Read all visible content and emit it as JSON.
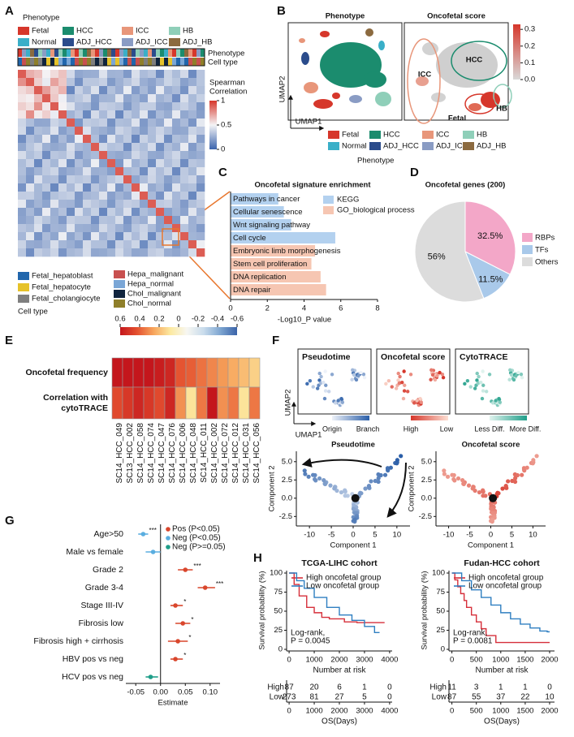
{
  "panel_labels": [
    "A",
    "B",
    "C",
    "D",
    "E",
    "F",
    "G",
    "H"
  ],
  "phenotype_legend": {
    "title": "Phenotype",
    "items": [
      {
        "name": "Fetal",
        "color": "#d6372b"
      },
      {
        "name": "HCC",
        "color": "#1b8c6e"
      },
      {
        "name": "ICC",
        "color": "#e8967a"
      },
      {
        "name": "HB",
        "color": "#8fcfb9"
      },
      {
        "name": "Normal",
        "color": "#3aafc8"
      },
      {
        "name": "ADJ_HCC",
        "color": "#2b4c8c"
      },
      {
        "name": "ADJ_ICC",
        "color": "#8a9cc4"
      },
      {
        "name": "ADJ_HB",
        "color": "#8b6a3f"
      }
    ]
  },
  "panel_a": {
    "annotation_rows": [
      "Phenotype",
      "Cell type"
    ],
    "colorbar": {
      "title_lines": [
        "Spearman",
        "Correlation"
      ],
      "lim": [
        0,
        1
      ],
      "ticks": [
        1,
        0.5,
        0
      ],
      "colors": [
        "#3b64ad",
        "#f4f4f6",
        "#d6372b"
      ]
    },
    "cell_type_legend": {
      "title": "Cell type",
      "items": [
        {
          "name": "Fetal_hepatoblast",
          "color": "#2166ac"
        },
        {
          "name": "Fetal_hepatocyte",
          "color": "#e6c229"
        },
        {
          "name": "Fetal_cholangiocyte",
          "color": "#7f7f7f"
        },
        {
          "name": "Hepa_malignant",
          "color": "#c8504f"
        },
        {
          "name": "Hepa_normal",
          "color": "#7aa6d6"
        },
        {
          "name": "Chol_malignant",
          "color": "#10243e"
        },
        {
          "name": "Chol_normal",
          "color": "#8f7f2a"
        }
      ]
    }
  },
  "panel_b": {
    "titles": [
      "Phenotype",
      "Oncofetal score"
    ],
    "axis_labels": [
      "UMAP2",
      "UMAP1"
    ],
    "region_labels": [
      "ICC",
      "HCC",
      "HB",
      "Fetal"
    ],
    "colorbar": {
      "lim": [
        0,
        0.33
      ],
      "ticks": [
        0.3,
        0.2,
        0.1,
        {
          "value": 0,
          "label": "0.0"
        }
      ],
      "colors": [
        "#d9d9d9",
        "#d6372b"
      ]
    },
    "legend_title": "Phenotype"
  },
  "panel_f": {
    "titles": [
      "Pseudotime",
      "Oncofetal score",
      "CytoTRACE"
    ],
    "axis_labels": [
      "UMAP2",
      "UMAP1"
    ],
    "scale_labels": [
      [
        "Origin",
        "Branch"
      ],
      [
        "High",
        "Low"
      ],
      [
        "Less Diff.",
        "More Diff."
      ]
    ],
    "scale_colors": [
      [
        "#eef2f9",
        "#2a5ea8"
      ],
      [
        "#d6372b",
        "#fde0d4"
      ],
      [
        "#e0f3ee",
        "#1f9e89"
      ]
    ],
    "trajectory": {
      "titles": [
        "Pseudotime",
        "Oncofetal score"
      ],
      "xlabel": "Component 1",
      "ylabel": "Component 2",
      "branch_label": "1",
      "xlim": [
        -13,
        13
      ],
      "xticks": [
        -10,
        -5,
        0,
        5,
        10
      ],
      "ylim": [
        -3.8,
        6.2
      ],
      "yticks": [
        -2.5,
        {
          "value": 0,
          "label": "0.0"
        },
        2.5,
        {
          "value": 5,
          "label": "5.0"
        }
      ]
    }
  },
  "chart_data": [
    {
      "type": "barh",
      "title": "Oncofetal signature enrichment",
      "categories": [
        "Pathways in cancer",
        "Cellular senescence",
        "Wnt signaling pathway",
        "Cell cycle",
        "Embryonic limb morphogenesis",
        "Stem cell proliferation",
        "DNA replication",
        "DNA repair"
      ],
      "series": [
        {
          "name": "KEGG",
          "color": "#b3d1ef",
          "text_color": "#1f4e8c",
          "values": [
            2.6,
            2.9,
            3.3,
            5.7,
            null,
            null,
            null,
            null
          ]
        },
        {
          "name": "GO_biological process",
          "color": "#f6c6b2",
          "text_color": "#8a3a1c",
          "values": [
            null,
            null,
            null,
            null,
            4.6,
            4.4,
            4.9,
            5.2
          ]
        }
      ],
      "xlim": [
        0,
        8
      ],
      "xticks": [
        0,
        2,
        4,
        6,
        8
      ],
      "xlabel": "-Log10_P value"
    },
    {
      "type": "pie",
      "title": "Oncofetal genes (200)",
      "categories": [
        "RBPs",
        "TFs",
        "Others"
      ],
      "values": [
        32.5,
        11.5,
        56
      ],
      "value_labels": [
        "32.5%",
        "11.5%",
        "56%"
      ],
      "colors": [
        "#f3a7c8",
        "#a9c9ea",
        "#dcdcdc"
      ]
    },
    {
      "type": "forest",
      "categories": [
        "Age>50",
        "Male vs female",
        "Grade 2",
        "Grade 3-4",
        "Stage III-IV",
        "Fibrosis low",
        "Fibrosis high + cirrhosis",
        "HBV pos vs neg",
        "HCV pos vs neg"
      ],
      "series": [
        {
          "name": "Pos (P<0.05)",
          "color": "#d9462c",
          "values": [
            null,
            null,
            0.05,
            0.09,
            0.03,
            0.045,
            0.035,
            0.03,
            null
          ],
          "lower": [
            null,
            null,
            0.035,
            0.075,
            0.02,
            0.03,
            0.015,
            0.02,
            null
          ],
          "upper": [
            null,
            null,
            0.065,
            0.11,
            0.045,
            0.06,
            0.055,
            0.045,
            null
          ]
        },
        {
          "name": "Neg (P<0.05)",
          "color": "#5aaee0",
          "values": [
            -0.035,
            -0.015,
            null,
            null,
            null,
            null,
            null,
            null,
            null
          ],
          "lower": [
            -0.045,
            -0.03,
            null,
            null,
            null,
            null,
            null,
            null,
            null
          ],
          "upper": [
            -0.025,
            0.0,
            null,
            null,
            null,
            null,
            null,
            null,
            null
          ]
        },
        {
          "name": "Neg (P>=0.05)",
          "color": "#1f9e89",
          "values": [
            null,
            null,
            null,
            null,
            null,
            null,
            null,
            null,
            -0.02
          ],
          "lower": [
            null,
            null,
            null,
            null,
            null,
            null,
            null,
            null,
            -0.03
          ],
          "upper": [
            null,
            null,
            null,
            null,
            null,
            null,
            null,
            null,
            -0.005
          ]
        }
      ],
      "annotations": [
        "***",
        null,
        "***",
        "***",
        "*",
        "*",
        "*",
        "*",
        null
      ],
      "xlim": [
        -0.07,
        0.12
      ],
      "xticks": [
        -0.05,
        {
          "value": 0,
          "label": "0.00"
        },
        0.05,
        {
          "value": 0.1,
          "label": "0.10"
        }
      ],
      "xlabel": "Estimate"
    },
    {
      "type": "km",
      "title": "TCGA-LIHC cohort",
      "series": [
        {
          "name": "High oncofetal group",
          "color": "#d62f3a",
          "x": [
            0,
            200,
            200,
            400,
            400,
            700,
            700,
            1000,
            1000,
            1300,
            1300,
            1600,
            1600,
            2200,
            2200,
            2700,
            2700,
            3800
          ],
          "values": [
            100,
            100,
            85,
            85,
            70,
            70,
            55,
            55,
            48,
            48,
            42,
            42,
            40,
            40,
            36,
            36,
            35,
            35
          ]
        },
        {
          "name": "Low oncofetal group",
          "color": "#2f7fc1",
          "x": [
            0,
            300,
            300,
            600,
            600,
            1000,
            1000,
            1500,
            1500,
            2000,
            2000,
            2500,
            2500,
            3000,
            3000,
            3400,
            3400,
            3600
          ],
          "values": [
            100,
            100,
            90,
            90,
            80,
            80,
            68,
            68,
            55,
            55,
            45,
            45,
            38,
            38,
            30,
            30,
            22,
            22
          ]
        }
      ],
      "xlim": [
        -100,
        4100
      ],
      "xticks": [
        0,
        1000,
        2000,
        3000,
        4000
      ],
      "ylim": [
        0,
        100
      ],
      "yticks": [
        0,
        25,
        50,
        75,
        100
      ],
      "ylabel": "Survival probability (%)",
      "xlabel": "Number at risk",
      "annotation_lines": [
        "Log-rank,",
        "P = 0.0045"
      ],
      "risk_table": {
        "rows": [
          {
            "name": "High",
            "values": [
              87,
              20,
              6,
              1,
              0
            ]
          },
          {
            "name": "Low",
            "values": [
              273,
              81,
              27,
              5,
              0
            ]
          }
        ],
        "xlabel": "OS(Days)"
      }
    },
    {
      "type": "km",
      "title": "Fudan-HCC cohort",
      "series": [
        {
          "name": "High oncofetal group",
          "color": "#d62f3a",
          "x": [
            0,
            60,
            60,
            120,
            120,
            180,
            180,
            250,
            250,
            300,
            300,
            400,
            400,
            500,
            500,
            600,
            600,
            700,
            700,
            900,
            900,
            2000
          ],
          "values": [
            100,
            100,
            91,
            91,
            82,
            82,
            73,
            73,
            64,
            64,
            55,
            55,
            45,
            45,
            36,
            36,
            27,
            27,
            18,
            18,
            9,
            9
          ]
        },
        {
          "name": "Low oncofetal group",
          "color": "#2f7fc1",
          "x": [
            0,
            200,
            200,
            400,
            400,
            600,
            600,
            800,
            800,
            1000,
            1000,
            1200,
            1200,
            1400,
            1400,
            1600,
            1600,
            1800,
            1800,
            1950,
            1950,
            2000
          ],
          "values": [
            100,
            100,
            90,
            90,
            78,
            78,
            68,
            68,
            58,
            58,
            48,
            48,
            40,
            40,
            33,
            33,
            28,
            28,
            24,
            24,
            23,
            23
          ]
        }
      ],
      "xlim": [
        -60,
        2100
      ],
      "xticks": [
        0,
        500,
        1000,
        1500,
        2000
      ],
      "ylim": [
        0,
        100
      ],
      "yticks": [
        0,
        25,
        50,
        75,
        100
      ],
      "ylabel": "Survival probability (%)",
      "xlabel": "Number at risk",
      "annotation_lines": [
        "Log-rank,",
        "P = 0.0081"
      ],
      "risk_table": {
        "rows": [
          {
            "name": "High",
            "values": [
              11,
              3,
              1,
              1,
              0
            ]
          },
          {
            "name": "Low",
            "values": [
              87,
              55,
              37,
              22,
              10
            ]
          }
        ],
        "xlabel": "OS(Days)"
      }
    },
    {
      "type": "heatmap",
      "categories": [
        "SC14_HCC_049",
        "SC13_HCC_002",
        "SC14_HCC_058",
        "SC14_HCC_074",
        "SC14_HCC_047",
        "SC14_HCC_076",
        "SC14_HCC_006",
        "SC14_HCC_048",
        "SC14_HCC_011",
        "SC14_HCC_002",
        "SC14_HCC_072",
        "SC14_HCC_012",
        "SC14_HCC_031",
        "SC14_HCC_056"
      ],
      "series": [
        {
          "name_lines": [
            "Oncofetal frequency"
          ],
          "values": [
            0.6,
            0.6,
            0.6,
            0.6,
            0.58,
            0.55,
            0.42,
            0.4,
            0.36,
            0.32,
            0.28,
            0.24,
            0.2,
            0.15
          ]
        },
        {
          "name_lines": [
            "Correlation with",
            "cytoTRACE"
          ],
          "values": [
            0.45,
            0.5,
            0.55,
            0.5,
            0.45,
            0.55,
            0.3,
            0.1,
            0.35,
            0.6,
            0.3,
            0.35,
            0.1,
            0.35
          ]
        }
      ],
      "clim": [
        -0.6,
        0.6
      ],
      "colors": [
        "#3a63a8",
        "#7ea6d1",
        "#c9dcec",
        "#f7f7f2",
        "#fce9a0",
        "#f7a55c",
        "#e4502f",
        "#c4161c"
      ],
      "colorbar_lim": [
        0.6,
        -0.6
      ],
      "colorbar_ticks": [
        0.6,
        0.4,
        0.2,
        0,
        -0.2,
        -0.4,
        -0.6
      ]
    }
  ]
}
